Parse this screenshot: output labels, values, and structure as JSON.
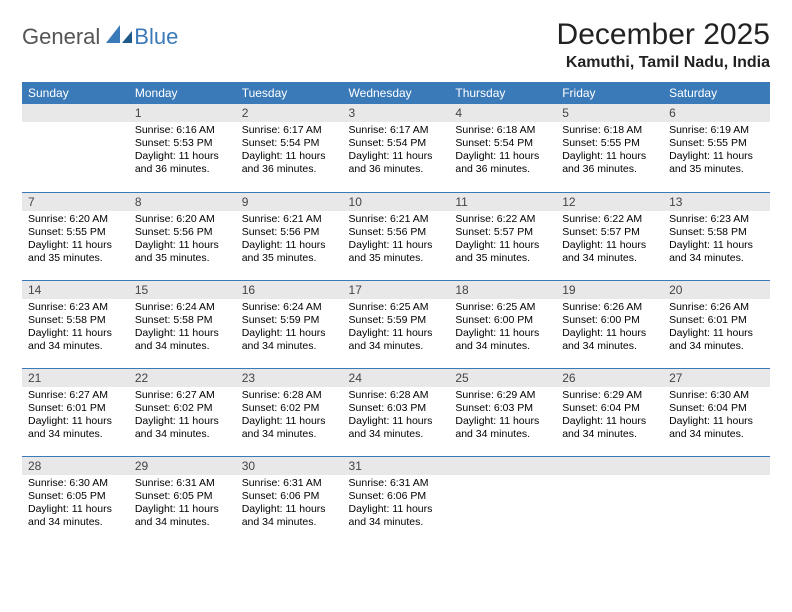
{
  "brand": {
    "text1": "General",
    "text2": "Blue"
  },
  "title": "December 2025",
  "location": "Kamuthi, Tamil Nadu, India",
  "colors": {
    "header_bg": "#3a7ab8",
    "band_bg": "#e8e8e8",
    "rule": "#3a7ab8"
  },
  "weekdays": [
    "Sunday",
    "Monday",
    "Tuesday",
    "Wednesday",
    "Thursday",
    "Friday",
    "Saturday"
  ],
  "weeks": [
    [
      {
        "num": "",
        "sunrise": "",
        "sunset": "",
        "daylight": ""
      },
      {
        "num": "1",
        "sunrise": "Sunrise: 6:16 AM",
        "sunset": "Sunset: 5:53 PM",
        "daylight": "Daylight: 11 hours and 36 minutes."
      },
      {
        "num": "2",
        "sunrise": "Sunrise: 6:17 AM",
        "sunset": "Sunset: 5:54 PM",
        "daylight": "Daylight: 11 hours and 36 minutes."
      },
      {
        "num": "3",
        "sunrise": "Sunrise: 6:17 AM",
        "sunset": "Sunset: 5:54 PM",
        "daylight": "Daylight: 11 hours and 36 minutes."
      },
      {
        "num": "4",
        "sunrise": "Sunrise: 6:18 AM",
        "sunset": "Sunset: 5:54 PM",
        "daylight": "Daylight: 11 hours and 36 minutes."
      },
      {
        "num": "5",
        "sunrise": "Sunrise: 6:18 AM",
        "sunset": "Sunset: 5:55 PM",
        "daylight": "Daylight: 11 hours and 36 minutes."
      },
      {
        "num": "6",
        "sunrise": "Sunrise: 6:19 AM",
        "sunset": "Sunset: 5:55 PM",
        "daylight": "Daylight: 11 hours and 35 minutes."
      }
    ],
    [
      {
        "num": "7",
        "sunrise": "Sunrise: 6:20 AM",
        "sunset": "Sunset: 5:55 PM",
        "daylight": "Daylight: 11 hours and 35 minutes."
      },
      {
        "num": "8",
        "sunrise": "Sunrise: 6:20 AM",
        "sunset": "Sunset: 5:56 PM",
        "daylight": "Daylight: 11 hours and 35 minutes."
      },
      {
        "num": "9",
        "sunrise": "Sunrise: 6:21 AM",
        "sunset": "Sunset: 5:56 PM",
        "daylight": "Daylight: 11 hours and 35 minutes."
      },
      {
        "num": "10",
        "sunrise": "Sunrise: 6:21 AM",
        "sunset": "Sunset: 5:56 PM",
        "daylight": "Daylight: 11 hours and 35 minutes."
      },
      {
        "num": "11",
        "sunrise": "Sunrise: 6:22 AM",
        "sunset": "Sunset: 5:57 PM",
        "daylight": "Daylight: 11 hours and 35 minutes."
      },
      {
        "num": "12",
        "sunrise": "Sunrise: 6:22 AM",
        "sunset": "Sunset: 5:57 PM",
        "daylight": "Daylight: 11 hours and 34 minutes."
      },
      {
        "num": "13",
        "sunrise": "Sunrise: 6:23 AM",
        "sunset": "Sunset: 5:58 PM",
        "daylight": "Daylight: 11 hours and 34 minutes."
      }
    ],
    [
      {
        "num": "14",
        "sunrise": "Sunrise: 6:23 AM",
        "sunset": "Sunset: 5:58 PM",
        "daylight": "Daylight: 11 hours and 34 minutes."
      },
      {
        "num": "15",
        "sunrise": "Sunrise: 6:24 AM",
        "sunset": "Sunset: 5:58 PM",
        "daylight": "Daylight: 11 hours and 34 minutes."
      },
      {
        "num": "16",
        "sunrise": "Sunrise: 6:24 AM",
        "sunset": "Sunset: 5:59 PM",
        "daylight": "Daylight: 11 hours and 34 minutes."
      },
      {
        "num": "17",
        "sunrise": "Sunrise: 6:25 AM",
        "sunset": "Sunset: 5:59 PM",
        "daylight": "Daylight: 11 hours and 34 minutes."
      },
      {
        "num": "18",
        "sunrise": "Sunrise: 6:25 AM",
        "sunset": "Sunset: 6:00 PM",
        "daylight": "Daylight: 11 hours and 34 minutes."
      },
      {
        "num": "19",
        "sunrise": "Sunrise: 6:26 AM",
        "sunset": "Sunset: 6:00 PM",
        "daylight": "Daylight: 11 hours and 34 minutes."
      },
      {
        "num": "20",
        "sunrise": "Sunrise: 6:26 AM",
        "sunset": "Sunset: 6:01 PM",
        "daylight": "Daylight: 11 hours and 34 minutes."
      }
    ],
    [
      {
        "num": "21",
        "sunrise": "Sunrise: 6:27 AM",
        "sunset": "Sunset: 6:01 PM",
        "daylight": "Daylight: 11 hours and 34 minutes."
      },
      {
        "num": "22",
        "sunrise": "Sunrise: 6:27 AM",
        "sunset": "Sunset: 6:02 PM",
        "daylight": "Daylight: 11 hours and 34 minutes."
      },
      {
        "num": "23",
        "sunrise": "Sunrise: 6:28 AM",
        "sunset": "Sunset: 6:02 PM",
        "daylight": "Daylight: 11 hours and 34 minutes."
      },
      {
        "num": "24",
        "sunrise": "Sunrise: 6:28 AM",
        "sunset": "Sunset: 6:03 PM",
        "daylight": "Daylight: 11 hours and 34 minutes."
      },
      {
        "num": "25",
        "sunrise": "Sunrise: 6:29 AM",
        "sunset": "Sunset: 6:03 PM",
        "daylight": "Daylight: 11 hours and 34 minutes."
      },
      {
        "num": "26",
        "sunrise": "Sunrise: 6:29 AM",
        "sunset": "Sunset: 6:04 PM",
        "daylight": "Daylight: 11 hours and 34 minutes."
      },
      {
        "num": "27",
        "sunrise": "Sunrise: 6:30 AM",
        "sunset": "Sunset: 6:04 PM",
        "daylight": "Daylight: 11 hours and 34 minutes."
      }
    ],
    [
      {
        "num": "28",
        "sunrise": "Sunrise: 6:30 AM",
        "sunset": "Sunset: 6:05 PM",
        "daylight": "Daylight: 11 hours and 34 minutes."
      },
      {
        "num": "29",
        "sunrise": "Sunrise: 6:31 AM",
        "sunset": "Sunset: 6:05 PM",
        "daylight": "Daylight: 11 hours and 34 minutes."
      },
      {
        "num": "30",
        "sunrise": "Sunrise: 6:31 AM",
        "sunset": "Sunset: 6:06 PM",
        "daylight": "Daylight: 11 hours and 34 minutes."
      },
      {
        "num": "31",
        "sunrise": "Sunrise: 6:31 AM",
        "sunset": "Sunset: 6:06 PM",
        "daylight": "Daylight: 11 hours and 34 minutes."
      },
      {
        "num": "",
        "sunrise": "",
        "sunset": "",
        "daylight": ""
      },
      {
        "num": "",
        "sunrise": "",
        "sunset": "",
        "daylight": ""
      },
      {
        "num": "",
        "sunrise": "",
        "sunset": "",
        "daylight": ""
      }
    ]
  ]
}
